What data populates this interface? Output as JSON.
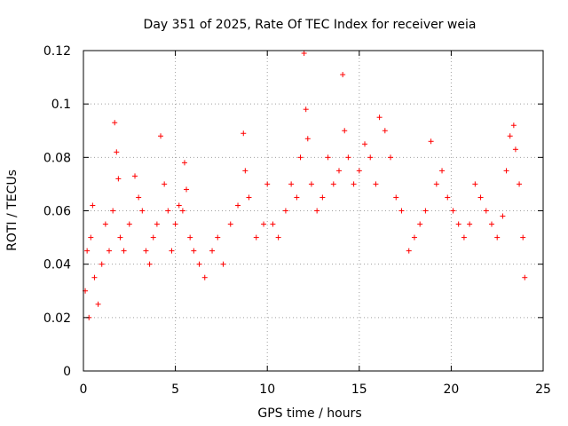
{
  "chart_data": {
    "type": "scatter",
    "title": "Day 351 of 2025, Rate Of TEC Index for receiver weia",
    "xlabel": "GPS time / hours",
    "ylabel": "ROTI / TECUs",
    "xlim": [
      0,
      25
    ],
    "ylim": [
      0,
      0.12
    ],
    "x_ticks": [
      "0",
      "5",
      "10",
      "15",
      "20",
      "25"
    ],
    "x_tick_values": [
      0,
      5,
      10,
      15,
      20,
      25
    ],
    "y_ticks": [
      "0",
      "0.02",
      "0.04",
      "0.06",
      "0.08",
      "0.1",
      "0.12"
    ],
    "y_tick_values": [
      0,
      0.02,
      0.04,
      0.06,
      0.08,
      0.1,
      0.12
    ],
    "grid": true,
    "marker": "plus",
    "color": "#ff0000",
    "series": [
      {
        "x": [
          0.1,
          0.2,
          0.3,
          0.4,
          0.5,
          0.6,
          0.8,
          1.0,
          1.2,
          1.4,
          1.6,
          1.7,
          1.8,
          1.9,
          2.0,
          2.2,
          2.5,
          2.8,
          3.0,
          3.2,
          3.4,
          3.6,
          3.8,
          4.0,
          4.2,
          4.4,
          4.6,
          4.8,
          5.0,
          5.2,
          5.4,
          5.5,
          5.6,
          5.8,
          6.0,
          6.3,
          6.6,
          7.0,
          7.3,
          7.6,
          8.0,
          8.4,
          8.7,
          8.8,
          9.0,
          9.4,
          9.8,
          10.0,
          10.3,
          10.6,
          11.0,
          11.3,
          11.6,
          11.8,
          12.0,
          12.1,
          12.2,
          12.4,
          12.7,
          13.0,
          13.3,
          13.6,
          13.9,
          14.1,
          14.2,
          14.4,
          14.7,
          15.0,
          15.3,
          15.6,
          15.9,
          16.1,
          16.4,
          16.7,
          17.0,
          17.3,
          17.7,
          18.0,
          18.3,
          18.6,
          18.9,
          19.2,
          19.5,
          19.8,
          20.1,
          20.4,
          20.7,
          21.0,
          21.3,
          21.6,
          21.9,
          22.2,
          22.5,
          22.8,
          23.0,
          23.2,
          23.4,
          23.5,
          23.7,
          23.9,
          24.0
        ],
        "y": [
          0.03,
          0.045,
          0.02,
          0.05,
          0.062,
          0.035,
          0.025,
          0.04,
          0.055,
          0.045,
          0.06,
          0.093,
          0.082,
          0.072,
          0.05,
          0.045,
          0.055,
          0.073,
          0.065,
          0.06,
          0.045,
          0.04,
          0.05,
          0.055,
          0.088,
          0.07,
          0.06,
          0.045,
          0.055,
          0.062,
          0.06,
          0.078,
          0.068,
          0.05,
          0.045,
          0.04,
          0.035,
          0.045,
          0.05,
          0.04,
          0.055,
          0.062,
          0.089,
          0.075,
          0.065,
          0.05,
          0.055,
          0.07,
          0.055,
          0.05,
          0.06,
          0.07,
          0.065,
          0.08,
          0.119,
          0.098,
          0.087,
          0.07,
          0.06,
          0.065,
          0.08,
          0.07,
          0.075,
          0.111,
          0.09,
          0.08,
          0.07,
          0.075,
          0.085,
          0.08,
          0.07,
          0.095,
          0.09,
          0.08,
          0.065,
          0.06,
          0.045,
          0.05,
          0.055,
          0.06,
          0.086,
          0.07,
          0.075,
          0.065,
          0.06,
          0.055,
          0.05,
          0.055,
          0.07,
          0.065,
          0.06,
          0.055,
          0.05,
          0.058,
          0.075,
          0.088,
          0.092,
          0.083,
          0.07,
          0.05,
          0.035
        ]
      }
    ]
  }
}
